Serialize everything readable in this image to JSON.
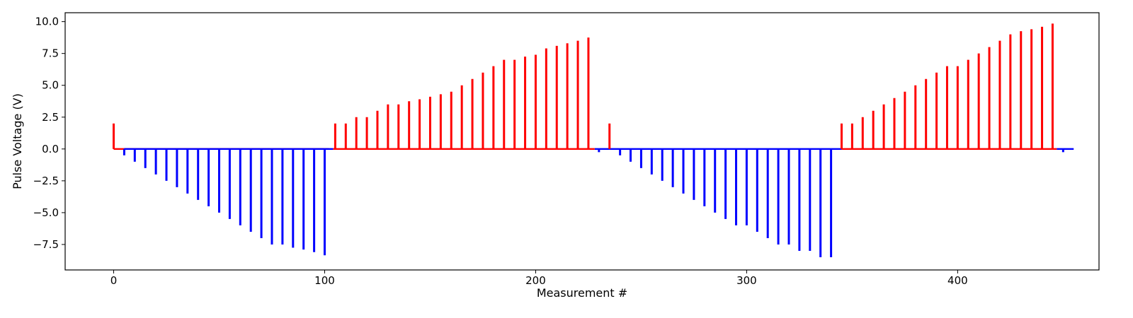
{
  "chart_data": {
    "type": "bar",
    "title": "",
    "xlabel": "Measurement #",
    "ylabel": "Pulse Voltage (V)",
    "xlim": [
      -23,
      467
    ],
    "ylim": [
      -9.5,
      10.7
    ],
    "xticks": [
      0,
      100,
      200,
      300,
      400
    ],
    "xtick_labels": [
      "0",
      "100",
      "200",
      "300",
      "400"
    ],
    "yticks": [
      -7.5,
      -5.0,
      -2.5,
      0.0,
      2.5,
      5.0,
      7.5,
      10.0
    ],
    "ytick_labels": [
      "−7.5",
      "−5.0",
      "−2.5",
      "0.0",
      "2.5",
      "5.0",
      "7.5",
      "10.0"
    ],
    "grid": false,
    "colors": {
      "positive": "#ff0000",
      "negative": "#0000ff",
      "axes": "#000000"
    },
    "baseline": {
      "segments": [
        {
          "x": [
            0,
            102
          ],
          "color": "#ff0000"
        },
        {
          "x": [
            5,
            104
          ],
          "color": "#0000ff"
        },
        {
          "x": [
            104,
            228
          ],
          "color": "#ff0000"
        },
        {
          "x": [
            228,
            345
          ],
          "color": "#0000ff"
        },
        {
          "x": [
            345,
            447
          ],
          "color": "#ff0000"
        },
        {
          "x": [
            447,
            455
          ],
          "color": "#0000ff"
        }
      ]
    },
    "series": [
      {
        "sign": "positive",
        "color": "#ff0000",
        "x": [
          0,
          105,
          110,
          115,
          120,
          125,
          130,
          135,
          140,
          145,
          150,
          155,
          160,
          165,
          170,
          175,
          180,
          185,
          190,
          195,
          200,
          205,
          210,
          215,
          220,
          225,
          235,
          345,
          350,
          355,
          360,
          365,
          370,
          375,
          380,
          385,
          390,
          395,
          400,
          405,
          410,
          415,
          420,
          425,
          430,
          435,
          440,
          445
        ],
        "values": [
          2.0,
          2.0,
          2.0,
          2.5,
          2.5,
          3.0,
          3.5,
          3.5,
          3.75,
          3.9,
          4.1,
          4.3,
          4.5,
          5.0,
          5.5,
          6.0,
          6.5,
          7.0,
          7.0,
          7.25,
          7.4,
          7.9,
          8.1,
          8.3,
          8.5,
          8.75,
          2.0,
          2.0,
          2.0,
          2.5,
          3.0,
          3.5,
          4.0,
          4.5,
          5.0,
          5.5,
          6.0,
          6.5,
          6.5,
          7.0,
          7.5,
          8.0,
          8.5,
          9.0,
          9.25,
          9.4,
          9.6,
          9.85
        ]
      },
      {
        "sign": "negative",
        "color": "#0000ff",
        "x": [
          5,
          10,
          15,
          20,
          25,
          30,
          35,
          40,
          45,
          50,
          55,
          60,
          65,
          70,
          75,
          80,
          85,
          90,
          95,
          100,
          230,
          240,
          245,
          250,
          255,
          260,
          265,
          270,
          275,
          280,
          285,
          290,
          295,
          300,
          305,
          310,
          315,
          320,
          325,
          330,
          335,
          340,
          450
        ],
        "values": [
          -0.5,
          -1.0,
          -1.5,
          -2.0,
          -2.5,
          -3.0,
          -3.5,
          -4.0,
          -4.5,
          -5.0,
          -5.5,
          -6.0,
          -6.5,
          -7.0,
          -7.5,
          -7.5,
          -7.75,
          -7.9,
          -8.1,
          -8.35,
          -0.25,
          -0.5,
          -1.0,
          -1.5,
          -2.0,
          -2.5,
          -3.0,
          -3.5,
          -4.0,
          -4.5,
          -5.0,
          -5.5,
          -6.0,
          -6.0,
          -6.5,
          -7.0,
          -7.5,
          -7.5,
          -8.0,
          -8.0,
          -8.5,
          -8.5,
          -0.25
        ]
      }
    ]
  }
}
